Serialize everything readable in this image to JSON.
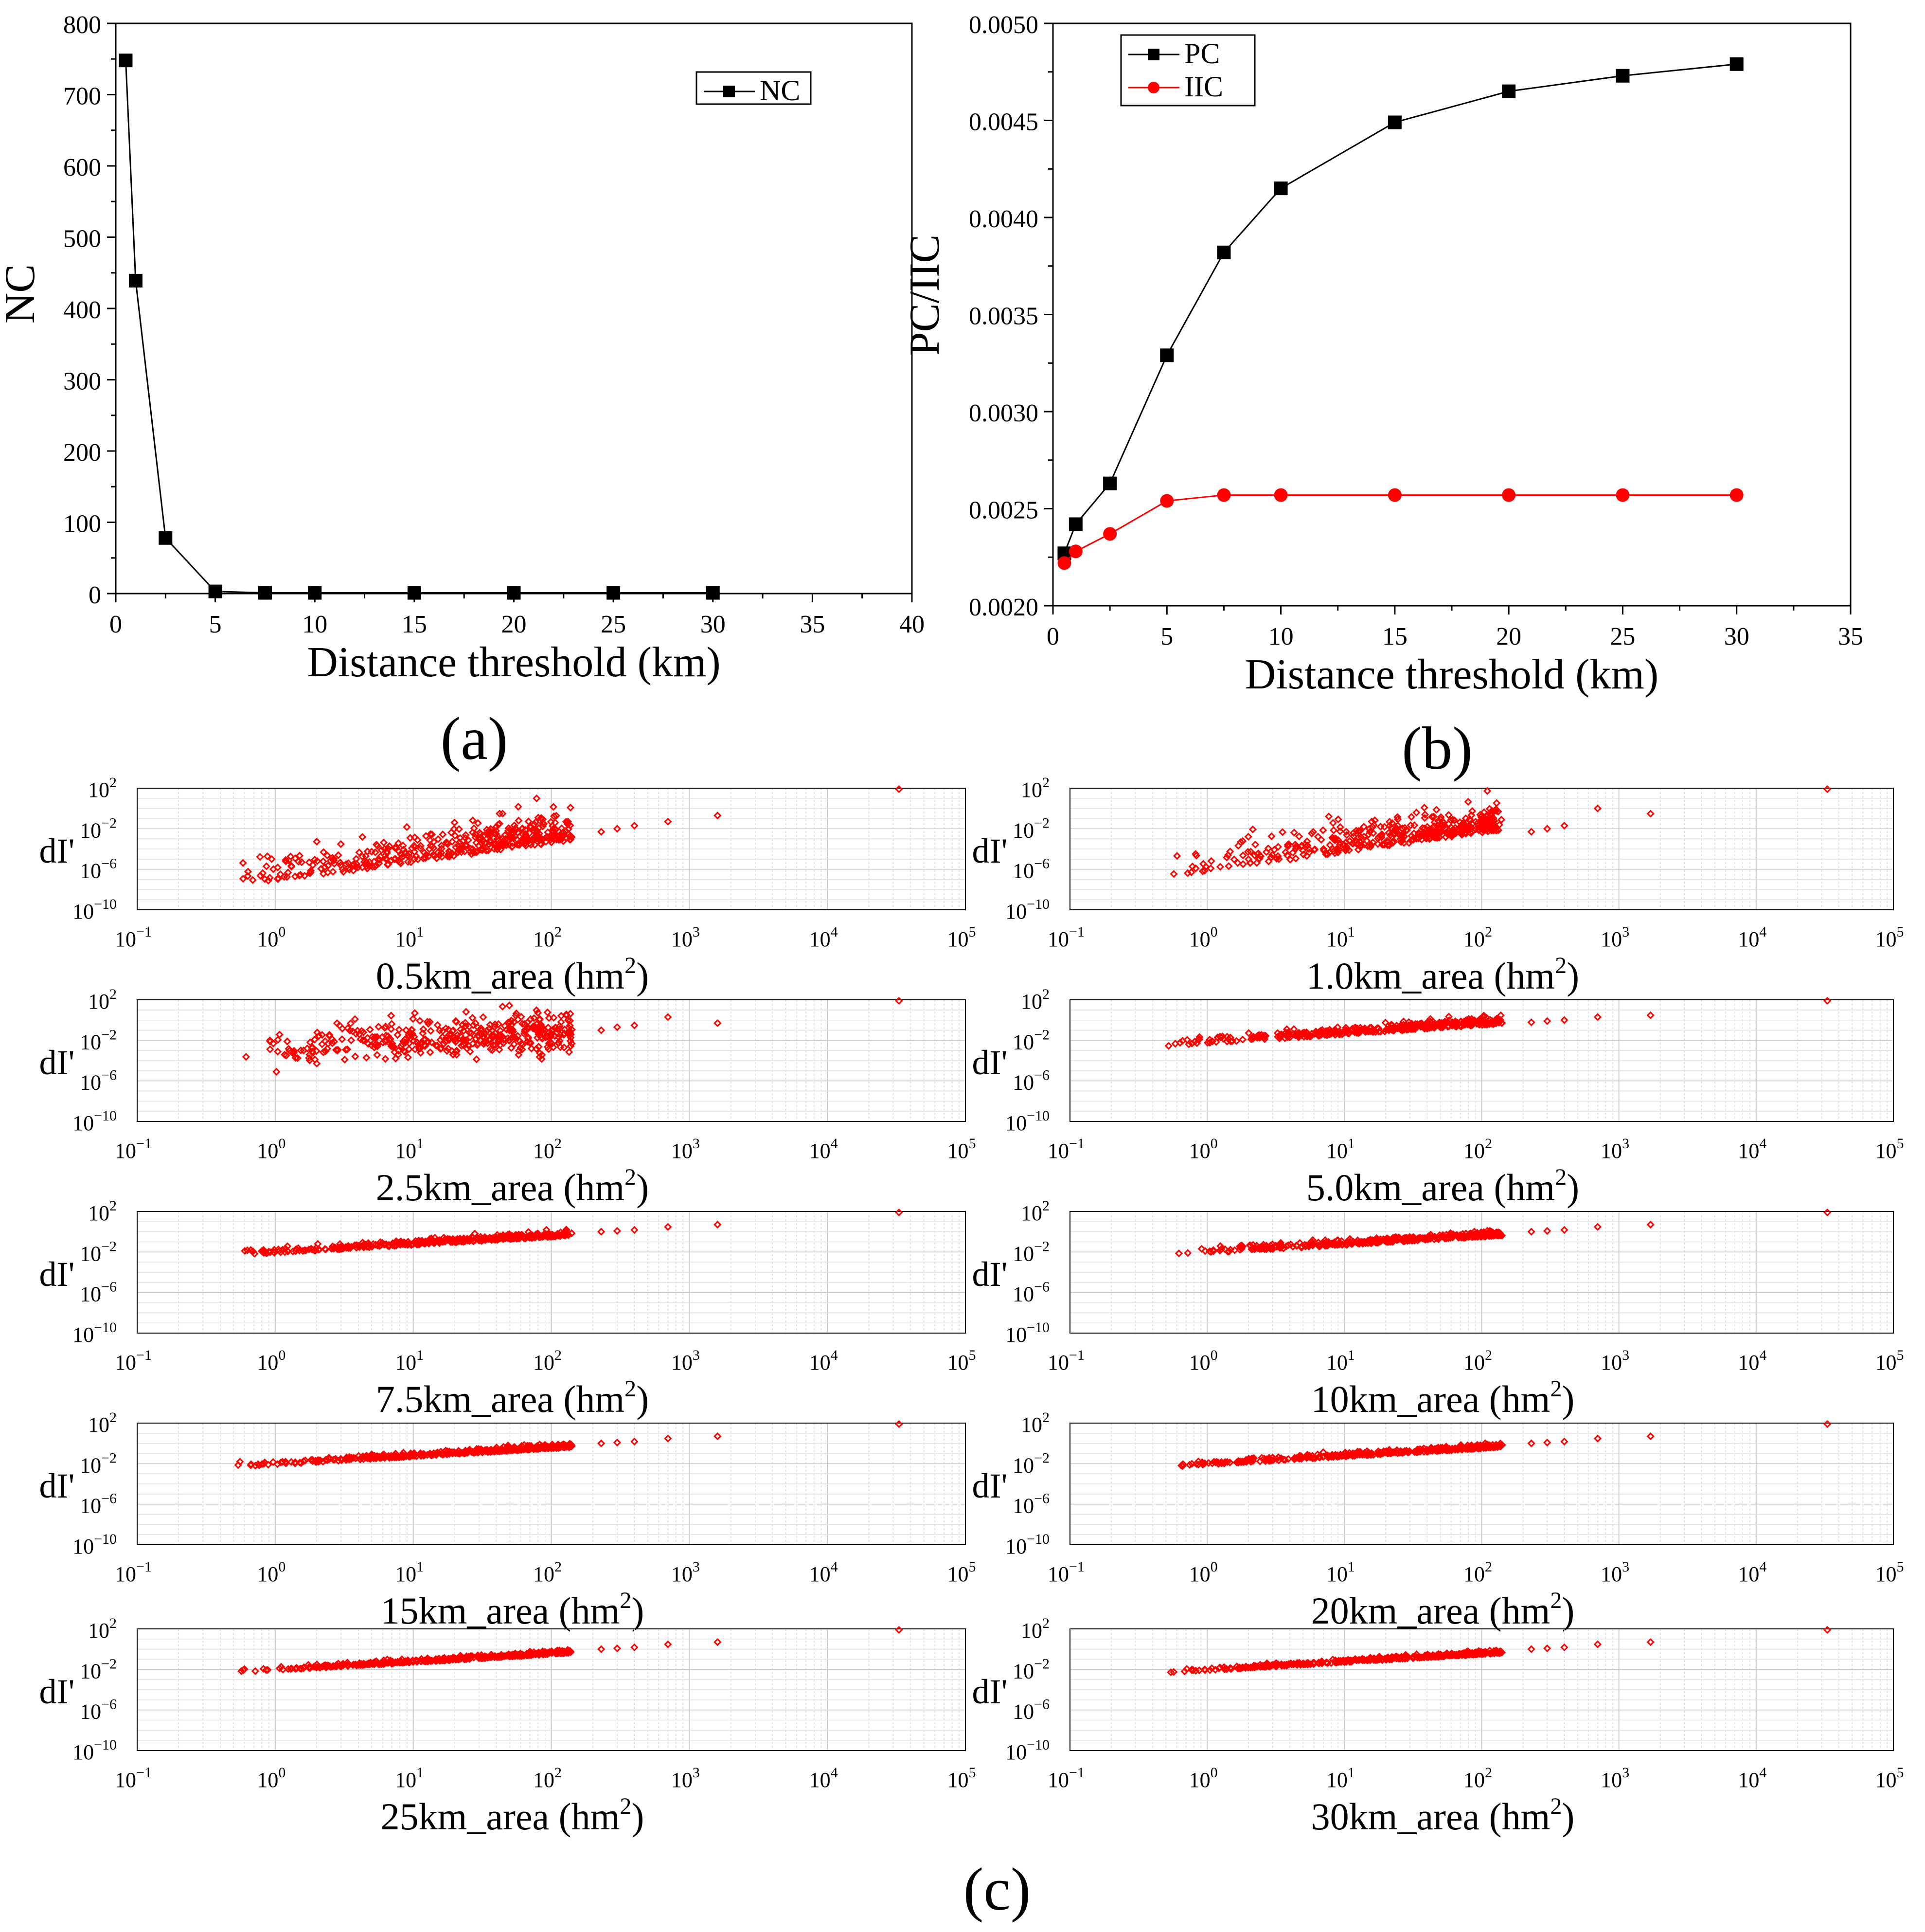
{
  "chart_data": [
    {
      "panel": "(a)",
      "type": "line",
      "xlabel": "Distance threshold (km)",
      "ylabel": "NC",
      "xlim": [
        0,
        40
      ],
      "ylim": [
        0,
        800
      ],
      "xticks": [
        "0",
        "5",
        "10",
        "15",
        "20",
        "25",
        "30",
        "35",
        "40"
      ],
      "yticks": [
        "0",
        "100",
        "200",
        "300",
        "400",
        "500",
        "600",
        "700",
        "800"
      ],
      "legend_position": "top-right",
      "grid": false,
      "series": [
        {
          "name": "NC",
          "color": "#000000",
          "marker": "square",
          "x": [
            0.5,
            1,
            2.5,
            5,
            7.5,
            10,
            15,
            20,
            25,
            30
          ],
          "y": [
            748,
            439,
            78,
            3,
            1,
            1,
            1,
            1,
            1,
            1
          ]
        }
      ]
    },
    {
      "panel": "(b)",
      "type": "line",
      "xlabel": "Distance threshold (km)",
      "ylabel": "PC/IIC",
      "xlim": [
        0,
        35
      ],
      "ylim": [
        0.002,
        0.005
      ],
      "xticks": [
        "0",
        "5",
        "10",
        "15",
        "20",
        "25",
        "30",
        "35"
      ],
      "yticks": [
        "0.0020",
        "0.0025",
        "0.0030",
        "0.0035",
        "0.0040",
        "0.0045",
        "0.0050"
      ],
      "legend_position": "top-left",
      "grid": false,
      "series": [
        {
          "name": "PC",
          "color": "#000000",
          "marker": "square",
          "x": [
            0.5,
            1,
            2.5,
            5,
            7.5,
            10,
            15,
            20,
            25,
            30
          ],
          "y": [
            0.00227,
            0.00242,
            0.00263,
            0.00329,
            0.00382,
            0.00415,
            0.00449,
            0.00465,
            0.00473,
            0.00479
          ]
        },
        {
          "name": "IIC",
          "color": "#ff0000",
          "marker": "circle",
          "x": [
            0.5,
            1,
            2.5,
            5,
            7.5,
            10,
            15,
            20,
            25,
            30
          ],
          "y": [
            0.00222,
            0.00228,
            0.00237,
            0.00254,
            0.00257,
            0.00257,
            0.00257,
            0.00257,
            0.00257,
            0.00257
          ]
        }
      ]
    },
    {
      "panel": "(c)",
      "type": "scatter",
      "xscale": "log",
      "yscale": "log",
      "xlim": [
        0.1,
        100000
      ],
      "ylim": [
        1e-10,
        100
      ],
      "grid": true,
      "color": "#ff0000",
      "marker": "diamond",
      "ylabel": "dI'",
      "xtick_bases": [
        "10",
        "10",
        "10",
        "10",
        "10",
        "10",
        "10"
      ],
      "xtick_exps": [
        "−1",
        "0",
        "1",
        "2",
        "3",
        "4",
        "5"
      ],
      "ytick_exps": [
        "2",
        "−2",
        "−6",
        "−10"
      ],
      "subplots": [
        {
          "label_prefix": "0.5km_area (hm",
          "label_sup": "2",
          "label_suffix": ")",
          "trend": {
            "a": -7.2,
            "b": 1.9
          },
          "spread": 3.8,
          "skew": "up",
          "large": [
            [
              230,
              0.005
            ],
            [
              300,
              0.01
            ],
            [
              400,
              0.02
            ],
            [
              700,
              0.05
            ],
            [
              1600,
              0.2
            ],
            [
              33000,
              80
            ]
          ]
        },
        {
          "label_prefix": "1.0km_area (hm",
          "label_sup": "2",
          "label_suffix": ")",
          "trend": {
            "a": -6.2,
            "b": 1.9
          },
          "spread": 3.5,
          "skew": "up",
          "large": [
            [
              230,
              0.005
            ],
            [
              300,
              0.01
            ],
            [
              400,
              0.02
            ],
            [
              700,
              1
            ],
            [
              1700,
              0.3
            ],
            [
              33000,
              80
            ]
          ]
        },
        {
          "label_prefix": "2.5km_area (hm",
          "label_sup": "2",
          "label_suffix": ")",
          "trend": {
            "a": -2.5,
            "b": 0.6
          },
          "spread": 2.6,
          "skew": "both",
          "large": [
            [
              230,
              0.1
            ],
            [
              300,
              0.2
            ],
            [
              400,
              0.3
            ],
            [
              700,
              2
            ],
            [
              1600,
              0.5
            ],
            [
              33000,
              80
            ]
          ]
        },
        {
          "label_prefix": "5.0km_area (hm",
          "label_sup": "2",
          "label_suffix": ")",
          "trend": {
            "a": -2.3,
            "b": 0.9
          },
          "spread": 1.0,
          "skew": "up",
          "large": [
            [
              230,
              0.6
            ],
            [
              300,
              0.8
            ],
            [
              400,
              1
            ],
            [
              700,
              2
            ],
            [
              1700,
              3
            ],
            [
              33000,
              80
            ]
          ]
        },
        {
          "label_prefix": "7.5km_area (hm",
          "label_sup": "2",
          "label_suffix": ")",
          "trend": {
            "a": -2.1,
            "b": 0.8
          },
          "spread": 0.7,
          "skew": "up",
          "large": [
            [
              230,
              1
            ],
            [
              300,
              1.2
            ],
            [
              400,
              1.5
            ],
            [
              700,
              3
            ],
            [
              1600,
              5
            ],
            [
              33000,
              80
            ]
          ]
        },
        {
          "label_prefix": "10km_area (hm",
          "label_sup": "2",
          "label_suffix": ")",
          "trend": {
            "a": -2.1,
            "b": 0.8
          },
          "spread": 0.7,
          "skew": "up",
          "large": [
            [
              230,
              1
            ],
            [
              300,
              1.2
            ],
            [
              400,
              1.5
            ],
            [
              700,
              3
            ],
            [
              1700,
              5
            ],
            [
              33000,
              80
            ]
          ]
        },
        {
          "label_prefix": "15km_area (hm",
          "label_sup": "2",
          "label_suffix": ")",
          "trend": {
            "a": -2.1,
            "b": 0.8
          },
          "spread": 0.5,
          "skew": "up",
          "large": [
            [
              230,
              1
            ],
            [
              300,
              1.2
            ],
            [
              400,
              1.5
            ],
            [
              700,
              3
            ],
            [
              1600,
              5
            ],
            [
              33000,
              80
            ]
          ]
        },
        {
          "label_prefix": "20km_area (hm",
          "label_sup": "2",
          "label_suffix": ")",
          "trend": {
            "a": -2.1,
            "b": 0.8
          },
          "spread": 0.5,
          "skew": "up",
          "large": [
            [
              230,
              1
            ],
            [
              300,
              1.2
            ],
            [
              400,
              1.5
            ],
            [
              700,
              3
            ],
            [
              1700,
              5
            ],
            [
              33000,
              80
            ]
          ]
        },
        {
          "label_prefix": "25km_area (hm",
          "label_sup": "2",
          "label_suffix": ")",
          "trend": {
            "a": -2.1,
            "b": 0.8
          },
          "spread": 0.4,
          "skew": "up",
          "large": [
            [
              230,
              1
            ],
            [
              300,
              1.2
            ],
            [
              400,
              1.5
            ],
            [
              700,
              3
            ],
            [
              1600,
              5
            ],
            [
              33000,
              80
            ]
          ]
        },
        {
          "label_prefix": "30km_area (hm",
          "label_sup": "2",
          "label_suffix": ")",
          "trend": {
            "a": -2.1,
            "b": 0.8
          },
          "spread": 0.4,
          "skew": "up",
          "large": [
            [
              230,
              1
            ],
            [
              300,
              1.2
            ],
            [
              400,
              1.5
            ],
            [
              700,
              3
            ],
            [
              1700,
              5
            ],
            [
              33000,
              80
            ]
          ]
        }
      ]
    }
  ],
  "panel_labels": [
    "(a)",
    "(b)",
    "(c)"
  ]
}
